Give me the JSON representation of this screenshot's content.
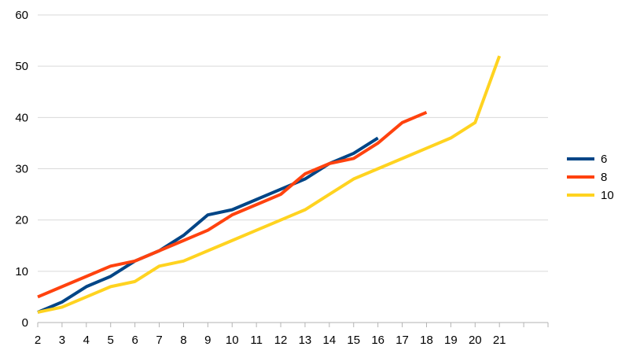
{
  "chart_data": {
    "type": "line",
    "title": "",
    "xlabel": "",
    "ylabel": "",
    "x_ticks": [
      "2",
      "3",
      "4",
      "5",
      "6",
      "7",
      "8",
      "9",
      "10",
      "11",
      "12",
      "13",
      "14",
      "15",
      "16",
      "17",
      "18",
      "19",
      "20",
      "21"
    ],
    "xlim": [
      2,
      23
    ],
    "ylim": [
      0,
      60
    ],
    "y_ticks": [
      0,
      10,
      20,
      30,
      40,
      50,
      60
    ],
    "grid": true,
    "legend_position": "right",
    "series": [
      {
        "name": "6",
        "color": "#004586",
        "x": [
          2,
          3,
          4,
          5,
          6,
          7,
          8,
          9,
          10,
          11,
          12,
          13,
          14,
          15,
          16
        ],
        "values": [
          2,
          4,
          7,
          9,
          12,
          14,
          17,
          21,
          22,
          24,
          26,
          28,
          31,
          33,
          36
        ]
      },
      {
        "name": "8",
        "color": "#ff420e",
        "x": [
          2,
          3,
          4,
          5,
          6,
          7,
          8,
          9,
          10,
          11,
          12,
          13,
          14,
          15,
          16,
          17,
          18
        ],
        "values": [
          5,
          7,
          9,
          11,
          12,
          14,
          16,
          18,
          21,
          23,
          25,
          29,
          31,
          32,
          35,
          39,
          41
        ]
      },
      {
        "name": "10",
        "color": "#ffd320",
        "x": [
          2,
          3,
          4,
          5,
          6,
          7,
          8,
          9,
          10,
          11,
          12,
          13,
          14,
          15,
          16,
          17,
          18,
          19,
          20,
          21
        ],
        "values": [
          2,
          3,
          5,
          7,
          8,
          11,
          12,
          14,
          16,
          18,
          20,
          22,
          25,
          28,
          30,
          32,
          34,
          36,
          39,
          52
        ]
      }
    ]
  }
}
